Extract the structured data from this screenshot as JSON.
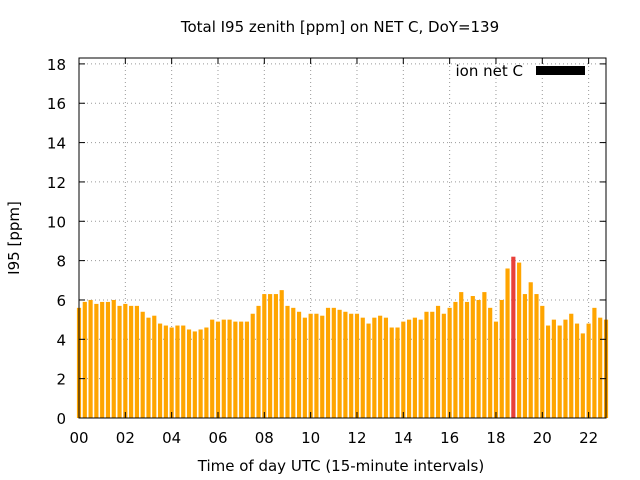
{
  "chart_data": {
    "type": "bar",
    "title": "Total I95 zenith [ppm] on NET C, DoY=139",
    "xlabel": "Time of day UTC (15-minute intervals)",
    "ylabel": "I95 [ppm]",
    "xlim": [
      0,
      22.75
    ],
    "ylim": [
      0,
      18.3
    ],
    "x_ticks": [
      0,
      2,
      4,
      6,
      8,
      10,
      12,
      14,
      16,
      18,
      20,
      22
    ],
    "x_tick_labels": [
      "00",
      "02",
      "04",
      "06",
      "08",
      "10",
      "12",
      "14",
      "16",
      "18",
      "20",
      "22"
    ],
    "y_ticks": [
      0,
      2,
      4,
      6,
      8,
      10,
      12,
      14,
      16,
      18
    ],
    "y_tick_labels": [
      "0",
      "2",
      "4",
      "6",
      "8",
      "10",
      "12",
      "14",
      "16",
      "18"
    ],
    "grid": true,
    "legend_position": "top-right",
    "bar_interval_hours": 0.25,
    "series": [
      {
        "name": "ion net C",
        "legend_color": "#000000",
        "bar_color": "#ffa500",
        "highlight_color": "#e8403a",
        "highlight_index": 75,
        "values": [
          5.6,
          5.9,
          6.0,
          5.8,
          5.9,
          5.9,
          6.0,
          5.7,
          5.8,
          5.7,
          5.7,
          5.4,
          5.1,
          5.2,
          4.8,
          4.7,
          4.6,
          4.7,
          4.7,
          4.5,
          4.4,
          4.5,
          4.6,
          5.0,
          4.9,
          5.0,
          5.0,
          4.9,
          4.9,
          4.9,
          5.3,
          5.7,
          6.3,
          6.3,
          6.3,
          6.5,
          5.7,
          5.6,
          5.4,
          5.1,
          5.3,
          5.3,
          5.2,
          5.6,
          5.6,
          5.5,
          5.4,
          5.3,
          5.3,
          5.1,
          4.8,
          5.1,
          5.2,
          5.1,
          4.6,
          4.6,
          4.9,
          5.0,
          5.1,
          5.0,
          5.4,
          5.4,
          5.7,
          5.3,
          5.6,
          5.9,
          6.4,
          5.9,
          6.2,
          6.0,
          6.4,
          5.6,
          4.9,
          6.0,
          7.6,
          8.2,
          7.9,
          6.3,
          6.9,
          6.3,
          5.7,
          4.7,
          5.0,
          4.7,
          5.0,
          5.3,
          4.8,
          4.3,
          4.8,
          5.6,
          5.1,
          5.0
        ]
      }
    ]
  }
}
